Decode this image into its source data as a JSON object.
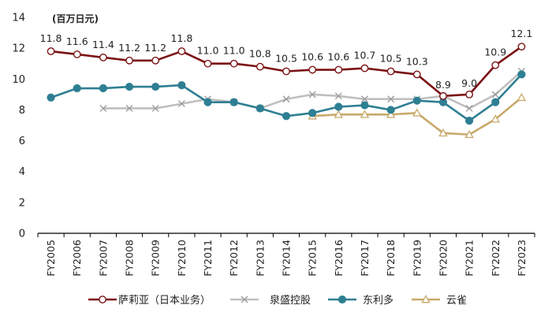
{
  "chart_data": {
    "type": "line",
    "title": "",
    "unit_label": "(百万日元)",
    "xlabel": "",
    "ylabel": "",
    "ylim": [
      0,
      14
    ],
    "yticks": [
      0,
      2,
      4,
      6,
      8,
      10,
      12,
      14
    ],
    "grid": false,
    "legend_position": "bottom",
    "categories": [
      "FY2005",
      "FY2006",
      "FY2007",
      "FY2008",
      "FY2009",
      "FY2010",
      "FY2011",
      "FY2012",
      "FY2013",
      "FY2014",
      "FY2015",
      "FY2016",
      "FY2017",
      "FY2018",
      "FY2019",
      "FY2020",
      "FY2021",
      "FY2022",
      "FY2023"
    ],
    "series": [
      {
        "name": "萨莉亚（日本业务）",
        "color": "#7b1113",
        "marker": "circle",
        "values": [
          11.8,
          11.6,
          11.4,
          11.2,
          11.2,
          11.8,
          11.0,
          11.0,
          10.8,
          10.5,
          10.6,
          10.6,
          10.7,
          10.5,
          10.3,
          8.9,
          9.0,
          10.9,
          12.1
        ],
        "data_labels": [
          "11.8",
          "11.6",
          "11.4",
          "11.2",
          "11.2",
          "11.8",
          "11.0",
          "11.0",
          "10.8",
          "10.5",
          "10.6",
          "10.6",
          "10.7",
          "10.5",
          "10.3",
          "8.9",
          "9.0",
          "10.9",
          "12.1"
        ]
      },
      {
        "name": "泉盛控股",
        "color": "#bfbfbf",
        "marker": "x",
        "values": [
          null,
          null,
          8.1,
          8.1,
          8.1,
          8.4,
          8.7,
          8.5,
          8.1,
          8.7,
          9.0,
          8.9,
          8.7,
          8.7,
          8.7,
          8.9,
          8.1,
          9.0,
          10.5
        ]
      },
      {
        "name": "东利多",
        "color": "#2e7f93",
        "marker": "dot",
        "values": [
          8.8,
          9.4,
          9.4,
          9.5,
          9.5,
          9.6,
          8.5,
          8.5,
          8.1,
          7.6,
          7.8,
          8.2,
          8.3,
          8.0,
          8.6,
          8.5,
          7.3,
          8.5,
          10.3
        ]
      },
      {
        "name": "云雀",
        "color": "#c8a96a",
        "marker": "triangle",
        "values": [
          null,
          null,
          null,
          null,
          null,
          null,
          null,
          null,
          null,
          null,
          7.6,
          7.7,
          7.7,
          7.7,
          7.8,
          6.5,
          6.4,
          7.4,
          8.8
        ]
      }
    ]
  }
}
